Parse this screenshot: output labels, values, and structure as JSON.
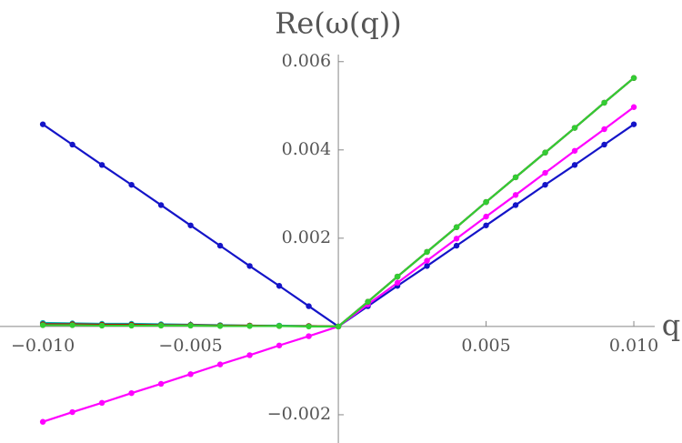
{
  "chart_data": {
    "type": "line",
    "title": "Re(ω(q))",
    "x_label": "q",
    "x": [
      -0.01,
      -0.009,
      -0.008,
      -0.007,
      -0.006,
      -0.005,
      -0.004,
      -0.003,
      -0.002,
      -0.001,
      0,
      0.001,
      0.002,
      0.003,
      0.004,
      0.005,
      0.006,
      0.007,
      0.008,
      0.009,
      0.01
    ],
    "series": [
      {
        "name": "blue",
        "color": "#1414c8",
        "values": [
          0.00458,
          0.00412,
          0.00366,
          0.00321,
          0.00275,
          0.00229,
          0.00183,
          0.00137,
          0.00092,
          0.00046,
          0,
          0.00046,
          0.00092,
          0.00137,
          0.00183,
          0.00229,
          0.00275,
          0.00321,
          0.00366,
          0.00412,
          0.00458
        ]
      },
      {
        "name": "magenta",
        "color": "#ff00ff",
        "values": [
          -0.00216,
          -0.00194,
          -0.00173,
          -0.00151,
          -0.0013,
          -0.00108,
          -0.00086,
          -0.00065,
          -0.00043,
          -0.00022,
          0,
          0.0005,
          0.00099,
          0.00149,
          0.00199,
          0.00249,
          0.00298,
          0.00348,
          0.00398,
          0.00447,
          0.00497
        ]
      },
      {
        "name": "cyan",
        "color": "#00b4b4",
        "values": [
          8e-05,
          7e-05,
          6e-05,
          6e-05,
          5e-05,
          4e-05,
          3e-05,
          2e-05,
          2e-05,
          1e-05,
          0,
          0.00056,
          0.00113,
          0.00169,
          0.00225,
          0.00282,
          0.00338,
          0.00394,
          0.0045,
          0.00507,
          0.00563
        ]
      },
      {
        "name": "darkred",
        "color": "#b40000",
        "values": [
          5e-05,
          5e-05,
          4e-05,
          4e-05,
          3e-05,
          3e-05,
          2e-05,
          2e-05,
          1e-05,
          1e-05,
          0,
          0.00056,
          0.00113,
          0.00169,
          0.00225,
          0.00282,
          0.00338,
          0.00394,
          0.0045,
          0.00507,
          0.00563
        ]
      },
      {
        "name": "green",
        "color": "#33cc33",
        "values": [
          3e-05,
          3e-05,
          2e-05,
          2e-05,
          2e-05,
          2e-05,
          1e-05,
          1e-05,
          1e-05,
          0,
          0,
          0.00056,
          0.00113,
          0.00169,
          0.00225,
          0.00282,
          0.00338,
          0.00394,
          0.0045,
          0.00507,
          0.00563
        ]
      }
    ],
    "xlim": [
      -0.01145,
      0.01163
    ],
    "ylim": [
      -0.00264,
      0.00616
    ],
    "xticks": [
      {
        "value": -0.01,
        "label": "−0.010"
      },
      {
        "value": -0.005,
        "label": "−0.005"
      },
      0.005,
      {
        "value": 0.01,
        "label": "0.010"
      }
    ],
    "yticks": [
      {
        "value": -0.002,
        "label": "−0.002"
      },
      0.002,
      0.004,
      0.006
    ]
  }
}
